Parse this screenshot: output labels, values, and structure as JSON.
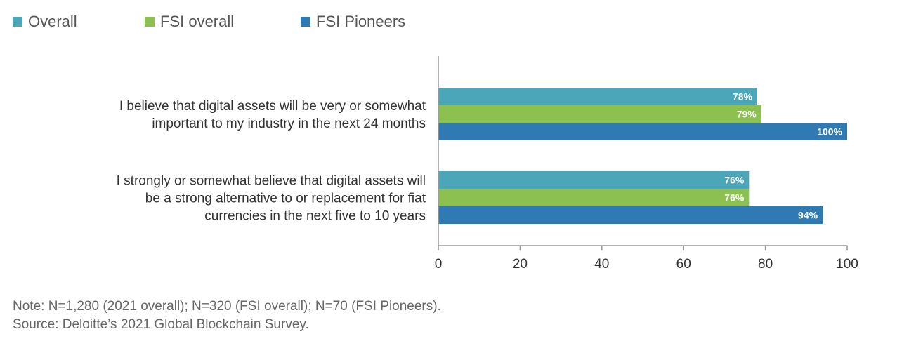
{
  "chart_data": {
    "type": "bar",
    "orientation": "horizontal",
    "categories": [
      [
        "I believe that digital assets will be very or somewhat",
        "important to my industry in the next 24 months"
      ],
      [
        "I strongly or somewhat believe that digital assets will",
        "be a strong alternative to or replacement for fiat",
        "currencies in the next five to 10 years"
      ]
    ],
    "series": [
      {
        "name": "Overall",
        "color": "#4aa6b8",
        "values": [
          78,
          76
        ],
        "labels": [
          "78%",
          "76%"
        ]
      },
      {
        "name": "FSI overall",
        "color": "#8cc152",
        "values": [
          79,
          76
        ],
        "labels": [
          "79%",
          "76%"
        ]
      },
      {
        "name": "FSI Pioneers",
        "color": "#2f7ab3",
        "values": [
          100,
          94
        ],
        "labels": [
          "100%",
          "94%"
        ]
      }
    ],
    "xlim": [
      0,
      100
    ],
    "xticks": [
      0,
      20,
      40,
      60,
      80,
      100
    ],
    "xtick_labels": [
      "0",
      "20",
      "40",
      "60",
      "80",
      "100"
    ],
    "grid": false,
    "legend_position": "top-left"
  },
  "footer": {
    "note": "Note:  N=1,280 (2021 overall); N=320 (FSI overall); N=70 (FSI Pioneers).",
    "source": "Source: Deloitte’s 2021 Global Blockchain Survey."
  }
}
